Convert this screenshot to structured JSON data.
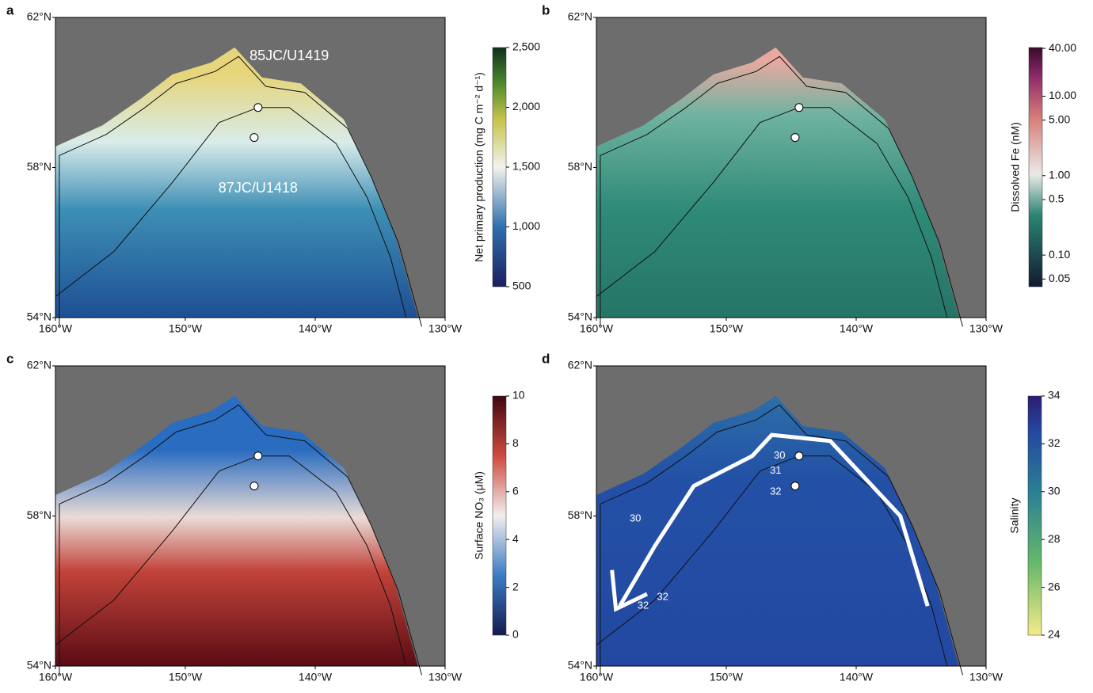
{
  "map": {
    "lat_range": [
      54,
      62
    ],
    "lon_range": [
      -160,
      -130
    ],
    "lat_ticks": [
      {
        "value": 62,
        "label": "62°N"
      },
      {
        "value": 58,
        "label": "58°N"
      },
      {
        "value": 54,
        "label": "54°N"
      }
    ],
    "lon_ticks": [
      {
        "value": -160,
        "label": "160°W"
      },
      {
        "value": -150,
        "label": "150°W"
      },
      {
        "value": -140,
        "label": "140°W"
      },
      {
        "value": -130,
        "label": "130°W"
      }
    ]
  },
  "panels": [
    {
      "letter": "a",
      "annotations": [
        "85JC/U1419",
        "87JC/U1418"
      ],
      "colorbar": {
        "label": "Net primary production (mg C m⁻² d⁻¹)",
        "range": [
          500,
          2500
        ],
        "log": false,
        "ticks": [
          {
            "value": 2500,
            "label": "2,500"
          },
          {
            "value": 2000,
            "label": "2,000"
          },
          {
            "value": 1500,
            "label": "1,500"
          },
          {
            "value": 1000,
            "label": "1,000"
          },
          500
        ]
      }
    },
    {
      "letter": "b",
      "annotations": [],
      "colorbar": {
        "label": "Dissolved Fe (nM)",
        "range": [
          0.04,
          41
        ],
        "log": true,
        "ticks": [
          {
            "value": 40,
            "label": "40.00"
          },
          {
            "value": 10,
            "label": "10.00"
          },
          {
            "value": 5,
            "label": "5.00"
          },
          {
            "value": 1,
            "label": "1.00"
          },
          0.5,
          {
            "value": 0.1,
            "label": "0.10"
          },
          0.05
        ]
      }
    },
    {
      "letter": "c",
      "annotations": [],
      "colorbar": {
        "label": "Surface NO₃ (μM)",
        "range": [
          0,
          10
        ],
        "log": false,
        "ticks": [
          10,
          8,
          6,
          4,
          2,
          0
        ]
      }
    },
    {
      "letter": "d",
      "annotations": [
        "30",
        "31",
        "32",
        "30",
        "32",
        "32"
      ],
      "colorbar": {
        "label": "Salinity",
        "range": [
          24,
          34
        ],
        "log": false,
        "ticks": [
          34,
          32,
          30,
          28,
          26,
          24
        ]
      }
    }
  ]
}
